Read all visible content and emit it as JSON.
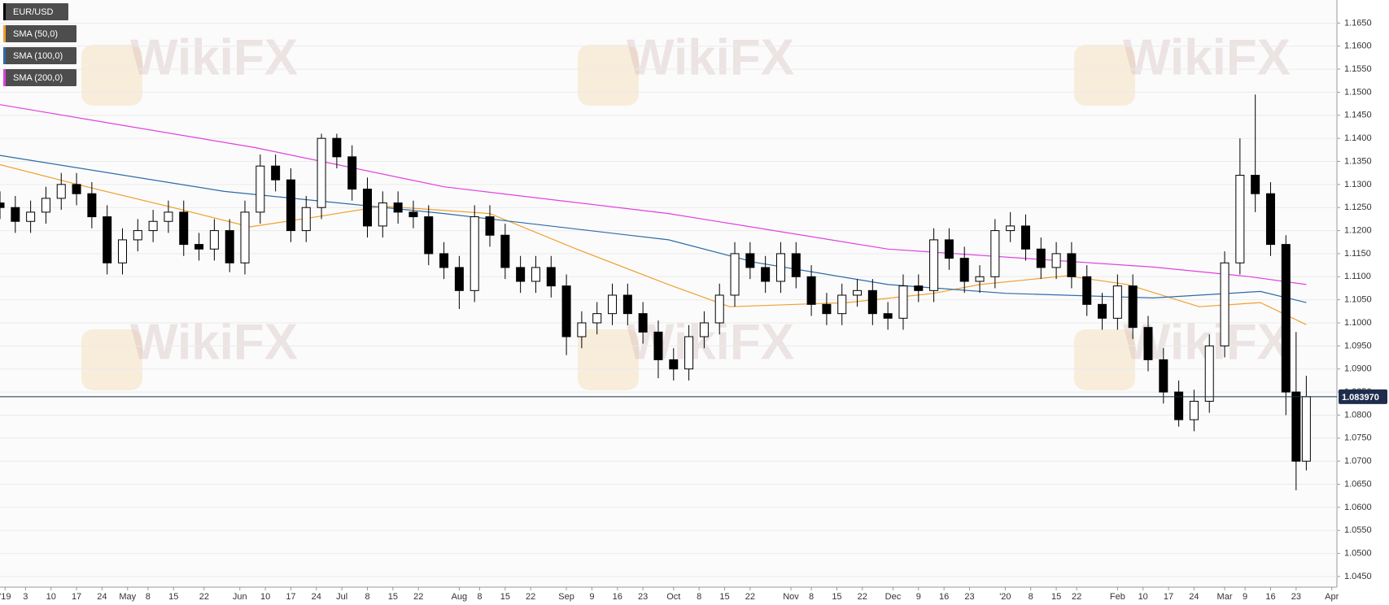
{
  "chart_data": {
    "type": "candlestick",
    "watermark": "WikiFX",
    "candles": {
      "name": "EUR/USD",
      "color": "#000000",
      "x": [
        0,
        3,
        6,
        9,
        12,
        15,
        18,
        21,
        24,
        27,
        30,
        33,
        36,
        39,
        42,
        45,
        48,
        51,
        54,
        57,
        60,
        63,
        66,
        69,
        72,
        75,
        78,
        81,
        84,
        87,
        90,
        93,
        96,
        99,
        102,
        105,
        108,
        111,
        114,
        117,
        120,
        123,
        126,
        129,
        132,
        135,
        138,
        141,
        144,
        147,
        150,
        153,
        156,
        159,
        162,
        165,
        168,
        171,
        174,
        177,
        180,
        183,
        186,
        189,
        192,
        195,
        198,
        201,
        204,
        207,
        210,
        213,
        216,
        219,
        222,
        225,
        228,
        231,
        234,
        237,
        240,
        243,
        246,
        249,
        252,
        254,
        256
      ],
      "open": [
        1.126,
        1.125,
        1.122,
        1.124,
        1.127,
        1.13,
        1.128,
        1.123,
        1.113,
        1.118,
        1.12,
        1.122,
        1.124,
        1.117,
        1.116,
        1.12,
        1.113,
        1.124,
        1.134,
        1.131,
        1.12,
        1.125,
        1.14,
        1.136,
        1.129,
        1.121,
        1.126,
        1.124,
        1.123,
        1.115,
        1.112,
        1.107,
        1.123,
        1.119,
        1.112,
        1.109,
        1.112,
        1.108,
        1.097,
        1.1,
        1.102,
        1.106,
        1.102,
        1.098,
        1.092,
        1.09,
        1.097,
        1.1,
        1.106,
        1.115,
        1.112,
        1.109,
        1.115,
        1.11,
        1.104,
        1.102,
        1.106,
        1.107,
        1.102,
        1.101,
        1.108,
        1.107,
        1.118,
        1.114,
        1.109,
        1.11,
        1.12,
        1.121,
        1.116,
        1.112,
        1.115,
        1.11,
        1.104,
        1.101,
        1.108,
        1.099,
        1.092,
        1.085,
        1.079,
        1.083,
        1.095,
        1.113,
        1.132,
        1.128,
        1.117,
        1.085,
        1.07
      ],
      "high": [
        1.1285,
        1.1275,
        1.1265,
        1.1295,
        1.1325,
        1.1325,
        1.1305,
        1.1255,
        1.1205,
        1.1225,
        1.1245,
        1.1265,
        1.1265,
        1.1195,
        1.1225,
        1.1225,
        1.1265,
        1.1365,
        1.1365,
        1.1335,
        1.1275,
        1.141,
        1.141,
        1.1385,
        1.1315,
        1.1285,
        1.1285,
        1.1265,
        1.1255,
        1.1175,
        1.1145,
        1.1255,
        1.1255,
        1.1215,
        1.1145,
        1.1145,
        1.1145,
        1.1105,
        1.1025,
        1.1045,
        1.1085,
        1.1085,
        1.1045,
        1.1005,
        1.0945,
        1.0995,
        1.1025,
        1.1085,
        1.1175,
        1.1175,
        1.1145,
        1.1175,
        1.1175,
        1.1125,
        1.1065,
        1.1085,
        1.1095,
        1.1095,
        1.1045,
        1.1105,
        1.1105,
        1.1205,
        1.1205,
        1.1165,
        1.1125,
        1.1225,
        1.124,
        1.1235,
        1.1185,
        1.1175,
        1.1175,
        1.1125,
        1.1065,
        1.1105,
        1.1105,
        1.1015,
        1.0945,
        1.0875,
        1.0855,
        1.0975,
        1.1155,
        1.14,
        1.1495,
        1.1305,
        1.119,
        1.098,
        1.0885
      ],
      "low": [
        1.1225,
        1.1195,
        1.1195,
        1.1215,
        1.1245,
        1.1255,
        1.1205,
        1.1105,
        1.1105,
        1.1155,
        1.1175,
        1.1195,
        1.1145,
        1.1135,
        1.1135,
        1.111,
        1.1105,
        1.1215,
        1.1285,
        1.1175,
        1.1175,
        1.1225,
        1.1335,
        1.1265,
        1.1185,
        1.1185,
        1.1215,
        1.1205,
        1.1125,
        1.1095,
        1.103,
        1.1045,
        1.1165,
        1.1095,
        1.1065,
        1.1065,
        1.1055,
        1.093,
        1.0945,
        1.0975,
        1.0995,
        1.0995,
        1.0955,
        1.088,
        1.0875,
        1.0875,
        1.0945,
        1.0975,
        1.1035,
        1.1095,
        1.1065,
        1.1065,
        1.1075,
        1.1015,
        1.0995,
        1.0995,
        1.1035,
        1.0995,
        1.0985,
        1.0985,
        1.1045,
        1.1045,
        1.1115,
        1.1065,
        1.1065,
        1.1075,
        1.1175,
        1.1135,
        1.1095,
        1.1095,
        1.1075,
        1.1015,
        1.0985,
        1.0985,
        1.0965,
        1.0895,
        1.0825,
        1.0775,
        1.0765,
        1.0805,
        1.0925,
        1.1105,
        1.124,
        1.1145,
        1.08,
        1.0637,
        1.068
      ],
      "close": [
        1.125,
        1.122,
        1.124,
        1.127,
        1.13,
        1.128,
        1.123,
        1.113,
        1.118,
        1.12,
        1.122,
        1.124,
        1.117,
        1.116,
        1.12,
        1.113,
        1.124,
        1.134,
        1.131,
        1.12,
        1.125,
        1.14,
        1.136,
        1.129,
        1.121,
        1.126,
        1.124,
        1.123,
        1.115,
        1.112,
        1.107,
        1.123,
        1.119,
        1.112,
        1.109,
        1.112,
        1.108,
        1.097,
        1.1,
        1.102,
        1.106,
        1.102,
        1.098,
        1.092,
        1.09,
        1.097,
        1.1,
        1.106,
        1.115,
        1.112,
        1.109,
        1.115,
        1.11,
        1.104,
        1.102,
        1.106,
        1.107,
        1.102,
        1.101,
        1.108,
        1.107,
        1.118,
        1.114,
        1.109,
        1.11,
        1.12,
        1.121,
        1.116,
        1.112,
        1.115,
        1.11,
        1.104,
        1.101,
        1.108,
        1.099,
        1.092,
        1.085,
        1.079,
        1.083,
        1.095,
        1.113,
        1.132,
        1.128,
        1.117,
        1.085,
        1.07,
        1.084
      ]
    },
    "series": [
      {
        "name": "SMA (50,0)",
        "color": "#f0a030",
        "x": [
          0,
          17,
          35,
          49,
          61,
          75,
          96,
          113,
          131,
          143,
          166,
          183,
          192,
          209,
          221,
          235,
          247,
          256
        ],
        "values": [
          1.1343,
          1.1295,
          1.1247,
          1.1208,
          1.1228,
          1.1253,
          1.1237,
          1.116,
          1.1083,
          1.1035,
          1.1044,
          1.1064,
          1.1083,
          1.1102,
          1.1083,
          1.1035,
          1.1044,
          1.0996
        ]
      },
      {
        "name": "SMA (100,0)",
        "color": "#2e6aa8",
        "x": [
          0,
          44,
          87,
          131,
          148,
          174,
          197,
          226,
          247,
          256
        ],
        "values": [
          1.1363,
          1.1285,
          1.1237,
          1.118,
          1.1131,
          1.1083,
          1.1064,
          1.1054,
          1.1068,
          1.1044
        ]
      },
      {
        "name": "SMA (200,0)",
        "color": "#e040e0",
        "x": [
          0,
          50,
          87,
          131,
          174,
          226,
          245,
          256
        ],
        "values": [
          1.1473,
          1.138,
          1.1295,
          1.1237,
          1.116,
          1.1121,
          1.11,
          1.1083
        ]
      }
    ],
    "last_price": {
      "value": 1.08397,
      "label": "1.083970"
    },
    "last_price_color": "#1f2d4d",
    "xlim": [
      0,
      262
    ],
    "ylim": [
      1.0427,
      1.17
    ],
    "grid": true,
    "legend": "top-left",
    "xticks": [
      {
        "value": 1,
        "label": "'19"
      },
      {
        "value": 5,
        "label": "3"
      },
      {
        "value": 10,
        "label": "10"
      },
      {
        "value": 15,
        "label": "17"
      },
      {
        "value": 20,
        "label": "24"
      },
      {
        "value": 25,
        "label": "May"
      },
      {
        "value": 29,
        "label": "8"
      },
      {
        "value": 34,
        "label": "15"
      },
      {
        "value": 40,
        "label": "22"
      },
      {
        "value": 47,
        "label": "Jun"
      },
      {
        "value": 52,
        "label": "10"
      },
      {
        "value": 57,
        "label": "17"
      },
      {
        "value": 62,
        "label": "24"
      },
      {
        "value": 67,
        "label": "Jul"
      },
      {
        "value": 72,
        "label": "8"
      },
      {
        "value": 77,
        "label": "15"
      },
      {
        "value": 82,
        "label": "22"
      },
      {
        "value": 90,
        "label": "Aug"
      },
      {
        "value": 94,
        "label": "8"
      },
      {
        "value": 99,
        "label": "15"
      },
      {
        "value": 104,
        "label": "22"
      },
      {
        "value": 111,
        "label": "Sep"
      },
      {
        "value": 116,
        "label": "9"
      },
      {
        "value": 121,
        "label": "16"
      },
      {
        "value": 126,
        "label": "23"
      },
      {
        "value": 132,
        "label": "Oct"
      },
      {
        "value": 137,
        "label": "8"
      },
      {
        "value": 142,
        "label": "15"
      },
      {
        "value": 147,
        "label": "22"
      },
      {
        "value": 155,
        "label": "Nov"
      },
      {
        "value": 159,
        "label": "8"
      },
      {
        "value": 164,
        "label": "15"
      },
      {
        "value": 169,
        "label": "22"
      },
      {
        "value": 175,
        "label": "Dec"
      },
      {
        "value": 180,
        "label": "9"
      },
      {
        "value": 185,
        "label": "16"
      },
      {
        "value": 190,
        "label": "23"
      },
      {
        "value": 197,
        "label": "'20"
      },
      {
        "value": 202,
        "label": "8"
      },
      {
        "value": 207,
        "label": "15"
      },
      {
        "value": 211,
        "label": "22"
      },
      {
        "value": 219,
        "label": "Feb"
      },
      {
        "value": 224,
        "label": "10"
      },
      {
        "value": 229,
        "label": "17"
      },
      {
        "value": 234,
        "label": "24"
      },
      {
        "value": 240,
        "label": "Mar"
      },
      {
        "value": 244,
        "label": "9"
      },
      {
        "value": 249,
        "label": "16"
      },
      {
        "value": 254,
        "label": "23"
      },
      {
        "value": 261,
        "label": "Apr"
      }
    ],
    "yticks": [
      {
        "value": 1.045,
        "label": "1.0450"
      },
      {
        "value": 1.05,
        "label": "1.0500"
      },
      {
        "value": 1.055,
        "label": "1.0550"
      },
      {
        "value": 1.06,
        "label": "1.0600"
      },
      {
        "value": 1.065,
        "label": "1.0650"
      },
      {
        "value": 1.07,
        "label": "1.0700"
      },
      {
        "value": 1.075,
        "label": "1.0750"
      },
      {
        "value": 1.08,
        "label": "1.0800"
      },
      {
        "value": 1.085,
        "label": "1.0850"
      },
      {
        "value": 1.09,
        "label": "1.0900"
      },
      {
        "value": 1.095,
        "label": "1.0950"
      },
      {
        "value": 1.1,
        "label": "1.1000"
      },
      {
        "value": 1.105,
        "label": "1.1050"
      },
      {
        "value": 1.11,
        "label": "1.1100"
      },
      {
        "value": 1.115,
        "label": "1.1150"
      },
      {
        "value": 1.12,
        "label": "1.1200"
      },
      {
        "value": 1.125,
        "label": "1.1250"
      },
      {
        "value": 1.13,
        "label": "1.1300"
      },
      {
        "value": 1.135,
        "label": "1.1350"
      },
      {
        "value": 1.14,
        "label": "1.1400"
      },
      {
        "value": 1.145,
        "label": "1.1450"
      },
      {
        "value": 1.15,
        "label": "1.1500"
      },
      {
        "value": 1.155,
        "label": "1.1550"
      },
      {
        "value": 1.16,
        "label": "1.1600"
      },
      {
        "value": 1.165,
        "label": "1.1650"
      }
    ]
  }
}
